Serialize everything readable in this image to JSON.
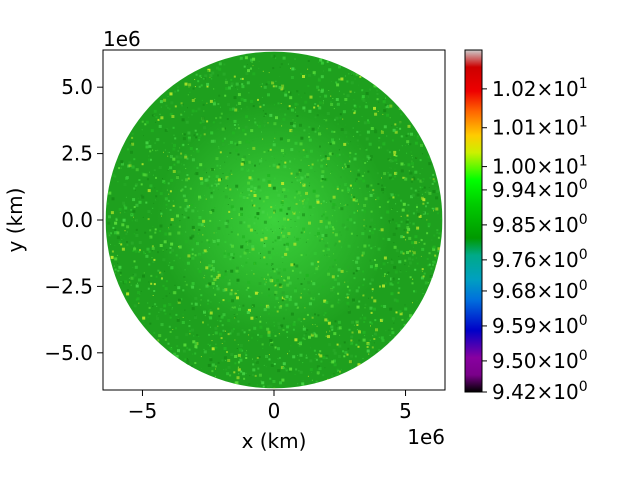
{
  "chart_data": {
    "type": "heatmap",
    "title": "",
    "xlabel": "x (km)",
    "ylabel": "y (km)",
    "x_offset_label": "1e6",
    "y_offset_label": "1e6",
    "xlim": [
      -6.5,
      6.5
    ],
    "ylim": [
      -6.4,
      6.4
    ],
    "x_ticks": [
      {
        "value": -5,
        "label": "−5"
      },
      {
        "value": 0,
        "label": "0"
      },
      {
        "value": 5,
        "label": "5"
      }
    ],
    "y_ticks": [
      {
        "value": 5.0,
        "label": "5.0"
      },
      {
        "value": 2.5,
        "label": "2.5"
      },
      {
        "value": 0.0,
        "label": "0.0"
      },
      {
        "value": -2.5,
        "label": "−2.5"
      },
      {
        "value": -5.0,
        "label": "−5.0"
      }
    ],
    "disk_radius": 6.4,
    "colorbar": {
      "colormap": "nipy_spectral",
      "range": [
        9.42,
        10.3
      ],
      "ticks": [
        {
          "value": 9.42,
          "mantissa": "9.42",
          "base": "10",
          "exp": "0"
        },
        {
          "value": 9.5,
          "mantissa": "9.50",
          "base": "10",
          "exp": "0"
        },
        {
          "value": 9.59,
          "mantissa": "9.59",
          "base": "10",
          "exp": "0"
        },
        {
          "value": 9.68,
          "mantissa": "9.68",
          "base": "10",
          "exp": "0"
        },
        {
          "value": 9.76,
          "mantissa": "9.76",
          "base": "10",
          "exp": "0"
        },
        {
          "value": 9.85,
          "mantissa": "9.85",
          "base": "10",
          "exp": "0"
        },
        {
          "value": 9.94,
          "mantissa": "9.94",
          "base": "10",
          "exp": "0"
        },
        {
          "value": 10.0,
          "mantissa": "1.00",
          "base": "10",
          "exp": "1"
        },
        {
          "value": 10.1,
          "mantissa": "1.01",
          "base": "10",
          "exp": "1"
        },
        {
          "value": 10.2,
          "mantissa": "1.02",
          "base": "10",
          "exp": "1"
        }
      ]
    },
    "colors": {
      "disk_base": "#1ea01e",
      "disk_light": "#3cd23c",
      "disk_speckle": "#b4e62a"
    }
  }
}
